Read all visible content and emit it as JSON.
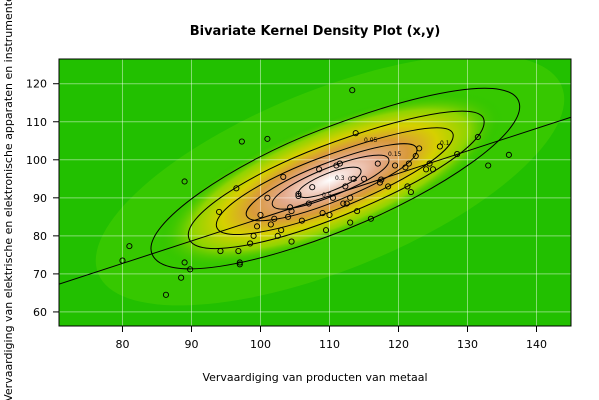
{
  "chart_data": {
    "type": "scatter",
    "title": "Bivariate Kernel Density Plot (x,y)",
    "xlabel": "Vervaardiging van producten van metaal",
    "ylabel": "Vervaardiging van elektrische en elektronische apparaten en instrumenten",
    "xlim": [
      70.8,
      145
    ],
    "ylim": [
      56.3,
      126.5
    ],
    "x_ticks": [
      80,
      90,
      100,
      110,
      120,
      130,
      140
    ],
    "y_ticks": [
      60,
      70,
      80,
      90,
      100,
      110,
      120
    ],
    "grid": true,
    "contour_labels": [
      "0.05",
      "0.15",
      "0.1",
      "0.2",
      "0.3",
      "0.5"
    ],
    "regression_line": {
      "x": [
        70.8,
        145
      ],
      "y": [
        67.3,
        111.2
      ]
    },
    "points": [
      [
        80,
        73.5
      ],
      [
        81,
        77.3
      ],
      [
        86.3,
        64.5
      ],
      [
        88.5,
        69
      ],
      [
        89,
        73
      ],
      [
        89,
        94.3
      ],
      [
        89.8,
        71.2
      ],
      [
        94,
        86.3
      ],
      [
        94.2,
        76
      ],
      [
        96.5,
        92.5
      ],
      [
        96.8,
        76
      ],
      [
        97,
        72.5
      ],
      [
        97,
        73
      ],
      [
        97.3,
        104.8
      ],
      [
        98.5,
        78
      ],
      [
        99,
        80
      ],
      [
        99.5,
        82.5
      ],
      [
        100,
        85.5
      ],
      [
        101,
        105.5
      ],
      [
        101,
        90
      ],
      [
        101.5,
        83
      ],
      [
        102,
        84.5
      ],
      [
        102.5,
        80
      ],
      [
        103,
        81.5
      ],
      [
        103.3,
        95.5
      ],
      [
        104,
        85
      ],
      [
        104.5,
        86.5
      ],
      [
        104.3,
        87.5
      ],
      [
        104.5,
        78.5
      ],
      [
        105.5,
        91
      ],
      [
        105.5,
        90.5
      ],
      [
        106,
        84
      ],
      [
        107,
        88.5
      ],
      [
        107.5,
        92.8
      ],
      [
        108.5,
        97.5
      ],
      [
        109,
        86
      ],
      [
        109.5,
        81.5
      ],
      [
        110,
        85.5
      ],
      [
        110.5,
        90
      ],
      [
        111,
        98.5
      ],
      [
        111.5,
        99
      ],
      [
        112,
        88.5
      ],
      [
        112.3,
        93
      ],
      [
        112.5,
        88.5
      ],
      [
        113,
        83.5
      ],
      [
        113,
        90
      ],
      [
        113.3,
        118.3
      ],
      [
        113.5,
        95
      ],
      [
        113.8,
        107
      ],
      [
        114,
        86.5
      ],
      [
        115,
        95
      ],
      [
        116,
        84.5
      ],
      [
        117,
        99
      ],
      [
        117.3,
        94
      ],
      [
        117.5,
        94.8
      ],
      [
        118.5,
        93
      ],
      [
        119.5,
        98.5
      ],
      [
        121,
        98
      ],
      [
        121.3,
        93
      ],
      [
        121.5,
        99
      ],
      [
        121.8,
        91.5
      ],
      [
        122.5,
        101
      ],
      [
        123,
        103
      ],
      [
        124,
        97.5
      ],
      [
        124.5,
        99
      ],
      [
        125,
        97.5
      ],
      [
        126,
        103.5
      ],
      [
        128.5,
        101.5
      ],
      [
        131.5,
        106
      ],
      [
        133,
        98.5
      ],
      [
        136,
        101.3
      ]
    ]
  }
}
